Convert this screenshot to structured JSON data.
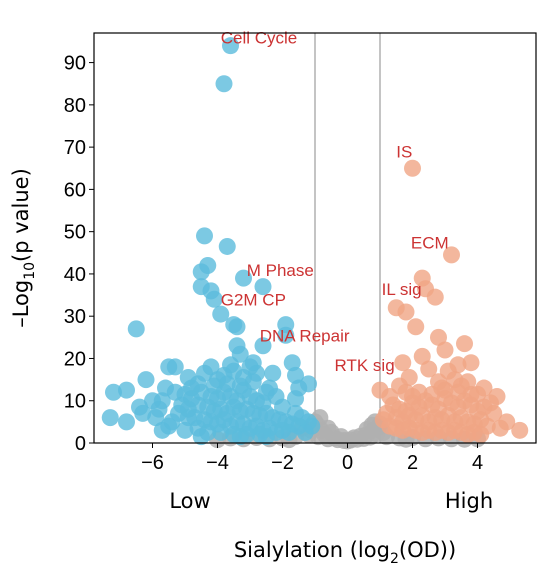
{
  "chart_data": {
    "type": "scatter",
    "title": "",
    "xlabel_main": "Sialylation (log",
    "xlabel_sub": "2",
    "xlabel_tail": "(OD))",
    "ylabel_pre": "–Log",
    "ylabel_sub": "10",
    "ylabel_post": "(p value)",
    "side_labels": {
      "left": "Low",
      "right": "High"
    },
    "xlim": [
      -7.8,
      5.8
    ],
    "ylim": [
      0,
      97
    ],
    "xticks": [
      -6,
      -4,
      -2,
      0,
      2,
      4
    ],
    "xtick_labels": [
      "−6",
      "−4",
      "−2",
      "0",
      "2",
      "4"
    ],
    "yticks": [
      0,
      10,
      20,
      30,
      40,
      50,
      60,
      70,
      80,
      90
    ],
    "thresholds_x": [
      -1,
      1
    ],
    "colors": {
      "low": "#5bbcdc",
      "high": "#f0a585",
      "ns": "#b0b0b0",
      "annotation": "#cc3333"
    },
    "annotations": [
      {
        "text": "Cell Cycle",
        "x": -3.9,
        "y": 94.5
      },
      {
        "text": "IS",
        "x": 1.5,
        "y": 67.5
      },
      {
        "text": "ECM",
        "x": 1.95,
        "y": 46
      },
      {
        "text": "M Phase",
        "x": -3.1,
        "y": 39.5
      },
      {
        "text": "IL sig",
        "x": 1.05,
        "y": 35
      },
      {
        "text": "G2M CP",
        "x": -3.9,
        "y": 32.5
      },
      {
        "text": "DNA Repair",
        "x": -2.7,
        "y": 24
      },
      {
        "text": "RTK sig",
        "x": -0.4,
        "y": 17
      }
    ],
    "series": [
      {
        "group": "low",
        "points": [
          [
            -3.6,
            94
          ],
          [
            -3.8,
            85
          ],
          [
            -3.7,
            46.5
          ],
          [
            -4.4,
            49
          ],
          [
            -4.3,
            42
          ],
          [
            -4.5,
            40.5
          ],
          [
            -4.5,
            37
          ],
          [
            -4.2,
            36
          ],
          [
            -3.2,
            39
          ],
          [
            -2.6,
            37
          ],
          [
            -4.1,
            34
          ],
          [
            -3.9,
            30.5
          ],
          [
            -3.5,
            28
          ],
          [
            -6.5,
            27
          ],
          [
            -3.4,
            27.5
          ],
          [
            -1.9,
            28
          ],
          [
            -1.9,
            25.5
          ],
          [
            -2.6,
            23
          ],
          [
            -3.4,
            23
          ],
          [
            -3.3,
            21
          ],
          [
            -5.3,
            18
          ],
          [
            -5.5,
            18
          ],
          [
            -4.4,
            16.5
          ],
          [
            -3.5,
            17
          ],
          [
            -1.6,
            16
          ],
          [
            -1.2,
            14
          ],
          [
            -1.5,
            13
          ],
          [
            -6.2,
            15
          ],
          [
            -4.8,
            13
          ],
          [
            -5.6,
            13
          ],
          [
            -7.2,
            12
          ],
          [
            -6.8,
            12.5
          ],
          [
            -6.0,
            10
          ],
          [
            -5.1,
            9
          ],
          [
            -6.4,
            8.5
          ],
          [
            -7.3,
            6
          ],
          [
            -6.8,
            5
          ],
          [
            -5.8,
            8
          ],
          [
            -5.7,
            3
          ],
          [
            -4.9,
            6
          ],
          [
            -2.5,
            12
          ],
          [
            -2.9,
            19
          ],
          [
            -1.7,
            19
          ],
          [
            -2.3,
            16.5
          ],
          [
            -4.5,
            12
          ],
          [
            -4.2,
            11
          ],
          [
            -4.0,
            10.5
          ],
          [
            -3.8,
            12
          ],
          [
            -3.6,
            11
          ],
          [
            -3.4,
            10
          ],
          [
            -3.2,
            12.5
          ],
          [
            -3.0,
            11
          ],
          [
            -2.8,
            10
          ],
          [
            -2.6,
            9.5
          ],
          [
            -4.6,
            9
          ],
          [
            -4.3,
            8.5
          ],
          [
            -4.1,
            7.5
          ],
          [
            -3.9,
            8
          ],
          [
            -3.7,
            7
          ],
          [
            -3.5,
            8.5
          ],
          [
            -3.3,
            7.5
          ],
          [
            -3.1,
            8
          ],
          [
            -2.9,
            7
          ],
          [
            -2.7,
            6.5
          ],
          [
            -2.5,
            7
          ],
          [
            -2.3,
            6
          ],
          [
            -2.1,
            5.5
          ],
          [
            -1.9,
            5
          ],
          [
            -1.7,
            4.5
          ],
          [
            -1.5,
            4
          ],
          [
            -4.7,
            6
          ],
          [
            -4.4,
            5.5
          ],
          [
            -4.2,
            5
          ],
          [
            -4.0,
            4.5
          ],
          [
            -3.8,
            5.5
          ],
          [
            -3.6,
            4
          ],
          [
            -3.4,
            5
          ],
          [
            -3.2,
            4.5
          ],
          [
            -3.0,
            3.5
          ],
          [
            -2.8,
            4
          ],
          [
            -2.6,
            3
          ],
          [
            -2.4,
            3.5
          ],
          [
            -2.2,
            2.5
          ],
          [
            -2.0,
            3
          ],
          [
            -1.8,
            2.5
          ],
          [
            -4.8,
            10.5
          ],
          [
            -5.0,
            11.5
          ],
          [
            -4.9,
            8
          ],
          [
            -5.2,
            7
          ],
          [
            -5.4,
            5
          ],
          [
            -4.6,
            3.5
          ],
          [
            -4.3,
            2.5
          ],
          [
            -3.9,
            2.5
          ],
          [
            -3.5,
            2
          ],
          [
            -3.1,
            2
          ],
          [
            -2.7,
            2
          ],
          [
            -4.1,
            13.5
          ],
          [
            -3.7,
            14
          ],
          [
            -3.3,
            13.5
          ],
          [
            -2.9,
            14.5
          ],
          [
            -3.8,
            16
          ],
          [
            -4.0,
            15
          ],
          [
            -2.0,
            8.5
          ],
          [
            -1.6,
            7
          ],
          [
            -1.4,
            6
          ],
          [
            -1.2,
            5
          ],
          [
            -1.1,
            4
          ],
          [
            -2.2,
            11
          ],
          [
            -2.4,
            13
          ],
          [
            -3.6,
            18.5
          ],
          [
            -3.2,
            15.5
          ],
          [
            -4.6,
            14
          ],
          [
            -5.3,
            12
          ],
          [
            -5.7,
            10
          ],
          [
            -6.3,
            7
          ],
          [
            -5.9,
            6
          ],
          [
            -5.5,
            4
          ],
          [
            -5.0,
            3
          ],
          [
            -4.5,
            1.5
          ],
          [
            -3.3,
            1.5
          ],
          [
            -2.5,
            1.5
          ],
          [
            -1.3,
            2.5
          ],
          [
            -1.6,
            10.5
          ],
          [
            -2.8,
            16.5
          ],
          [
            -4.9,
            15.5
          ],
          [
            -4.2,
            18
          ],
          [
            -3.0,
            18
          ]
        ]
      },
      {
        "group": "high",
        "points": [
          [
            2.0,
            65
          ],
          [
            3.2,
            44.5
          ],
          [
            2.3,
            39
          ],
          [
            2.4,
            36.5
          ],
          [
            2.7,
            34.5
          ],
          [
            1.5,
            32
          ],
          [
            1.8,
            31
          ],
          [
            2.1,
            27.5
          ],
          [
            2.8,
            25
          ],
          [
            3.6,
            23.5
          ],
          [
            3.0,
            22
          ],
          [
            3.8,
            19
          ],
          [
            2.3,
            20.5
          ],
          [
            1.7,
            19
          ],
          [
            3.4,
            18.5
          ],
          [
            3.3,
            15
          ],
          [
            3.7,
            14.5
          ],
          [
            2.8,
            14.5
          ],
          [
            1.6,
            13.5
          ],
          [
            1.0,
            12.5
          ],
          [
            1.3,
            11
          ],
          [
            1.9,
            15.5
          ],
          [
            4.2,
            13
          ],
          [
            4.4,
            9.5
          ],
          [
            4.0,
            7.5
          ],
          [
            4.9,
            5
          ],
          [
            5.3,
            3
          ],
          [
            4.7,
            3.5
          ],
          [
            3.1,
            17
          ],
          [
            2.5,
            17.5
          ],
          [
            1.4,
            9
          ],
          [
            1.6,
            8
          ],
          [
            1.8,
            7.5
          ],
          [
            2.0,
            9.5
          ],
          [
            2.2,
            8.5
          ],
          [
            2.4,
            10
          ],
          [
            2.6,
            9
          ],
          [
            2.8,
            8
          ],
          [
            3.0,
            10.5
          ],
          [
            3.2,
            9.5
          ],
          [
            3.4,
            8.5
          ],
          [
            3.6,
            10
          ],
          [
            3.8,
            9
          ],
          [
            4.0,
            11.5
          ],
          [
            1.5,
            6
          ],
          [
            1.7,
            5
          ],
          [
            1.9,
            6.5
          ],
          [
            2.1,
            5.5
          ],
          [
            2.3,
            6.5
          ],
          [
            2.5,
            5
          ],
          [
            2.7,
            6
          ],
          [
            2.9,
            5.5
          ],
          [
            3.1,
            6.5
          ],
          [
            3.3,
            5
          ],
          [
            3.5,
            6
          ],
          [
            3.7,
            5
          ],
          [
            3.9,
            4.5
          ],
          [
            4.1,
            5.5
          ],
          [
            4.3,
            4
          ],
          [
            1.3,
            4
          ],
          [
            1.5,
            3.5
          ],
          [
            1.7,
            3
          ],
          [
            1.9,
            3.5
          ],
          [
            2.1,
            3
          ],
          [
            2.3,
            2.5
          ],
          [
            2.5,
            3
          ],
          [
            2.7,
            2.5
          ],
          [
            2.9,
            3
          ],
          [
            3.1,
            2.5
          ],
          [
            3.3,
            3
          ],
          [
            3.5,
            2.5
          ],
          [
            3.7,
            2
          ],
          [
            3.9,
            2.5
          ],
          [
            4.1,
            2
          ],
          [
            2.2,
            12
          ],
          [
            2.6,
            11.5
          ],
          [
            3.0,
            12.5
          ],
          [
            3.4,
            12
          ],
          [
            3.8,
            11.5
          ],
          [
            2.0,
            11
          ],
          [
            1.2,
            7
          ],
          [
            1.1,
            5.5
          ],
          [
            4.5,
            7
          ],
          [
            4.6,
            11
          ],
          [
            3.5,
            13.5
          ],
          [
            2.9,
            13
          ],
          [
            1.8,
            12
          ],
          [
            4.2,
            8.5
          ]
        ]
      },
      {
        "group": "ns",
        "points": [
          [
            -3.6,
            1.2
          ],
          [
            -3.2,
            1
          ],
          [
            -2.8,
            1.3
          ],
          [
            -2.4,
            1
          ],
          [
            -2.0,
            1.2
          ],
          [
            -1.6,
            1.5
          ],
          [
            -1.2,
            2
          ],
          [
            -0.9,
            1.5
          ],
          [
            -0.8,
            3
          ],
          [
            -1.0,
            5
          ],
          [
            -0.7,
            2
          ],
          [
            -0.6,
            1
          ],
          [
            -0.5,
            2.5
          ],
          [
            -0.4,
            1.2
          ],
          [
            -0.3,
            0.8
          ],
          [
            -0.2,
            1.5
          ],
          [
            -0.1,
            0.6
          ],
          [
            0.0,
            0.5
          ],
          [
            0.1,
            0.7
          ],
          [
            0.2,
            1.2
          ],
          [
            0.3,
            0.9
          ],
          [
            0.4,
            1.6
          ],
          [
            0.5,
            1.1
          ],
          [
            0.6,
            2
          ],
          [
            0.7,
            1.4
          ],
          [
            0.8,
            3
          ],
          [
            0.9,
            2.2
          ],
          [
            1.0,
            4.5
          ],
          [
            0.85,
            5
          ],
          [
            1.2,
            1.5
          ],
          [
            1.6,
            1.2
          ],
          [
            2.0,
            1.3
          ],
          [
            2.4,
            1
          ],
          [
            2.8,
            1.2
          ],
          [
            3.2,
            1
          ],
          [
            3.6,
            0.9
          ],
          [
            4.0,
            1
          ],
          [
            -4.0,
            0.8
          ],
          [
            -1.4,
            3.5
          ],
          [
            -1.1,
            3
          ],
          [
            -0.9,
            4
          ],
          [
            0.95,
            3.8
          ],
          [
            1.1,
            2.5
          ],
          [
            -0.6,
            3.5
          ],
          [
            0.6,
            3.2
          ],
          [
            -1.8,
            0.8
          ],
          [
            1.8,
            0.9
          ],
          [
            -0.85,
            6
          ],
          [
            0.75,
            4.2
          ]
        ]
      }
    ]
  }
}
